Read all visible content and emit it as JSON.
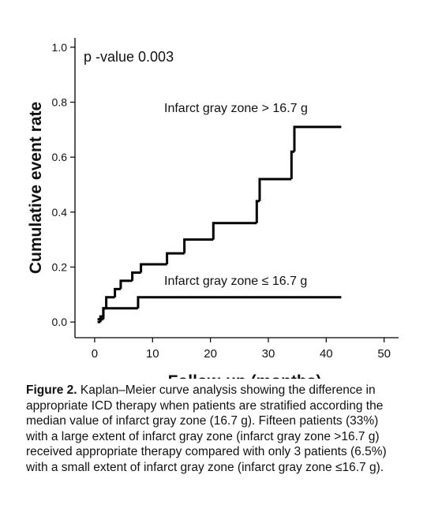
{
  "chart_data": {
    "type": "step",
    "annotation": "p -value 0.003",
    "x_label": "Follow-up (months)",
    "y_label": "Cumulative event rate",
    "xlim": [
      -3.4,
      52.5
    ],
    "ylim": [
      -0.057,
      1.034
    ],
    "xticks": [
      0,
      10,
      20,
      30,
      40,
      50
    ],
    "yticks": [
      {
        "value": 0,
        "label": "0.0"
      },
      {
        "value": 0.2,
        "label": "0.2"
      },
      {
        "value": 0.4,
        "label": "0.4"
      },
      {
        "value": 0.6,
        "label": "0.6"
      },
      {
        "value": 0.8,
        "label": "0.8"
      },
      {
        "value": 1,
        "label": "1.0"
      }
    ],
    "series": [
      {
        "name": "Infarct gray zone > 16.7 g",
        "color": "#000000",
        "x": [
          0.5,
          1,
          1.5,
          2,
          3.5,
          4.5,
          6.5,
          8,
          12.5,
          15.5,
          20.5,
          28,
          28.5,
          34,
          34.5,
          42.6
        ],
        "values": [
          0,
          0.02,
          0.05,
          0.09,
          0.12,
          0.15,
          0.18,
          0.21,
          0.25,
          0.3,
          0.36,
          0.44,
          0.52,
          0.62,
          0.71,
          0.71
        ]
      },
      {
        "name": "Infarct gray zone ≤ 16.7 g",
        "color": "#000000",
        "x": [
          0.5,
          1.5,
          7.5,
          42.6
        ],
        "values": [
          0.01,
          0.05,
          0.09,
          0.09
        ]
      }
    ]
  },
  "caption": {
    "label": "Figure 2.",
    "text": "Kaplan–Meier curve analysis showing the difference in appropriate ICD therapy when patients are stratified according the median value of infarct gray zone (16.7 g). Fifteen patients (33%) with a large extent of infarct gray zone (infarct gray zone >16.7 g) received appropriate therapy compared with only 3 patients (6.5%) with a small extent of infarct gray zone (infarct gray zone ≤16.7 g)."
  }
}
